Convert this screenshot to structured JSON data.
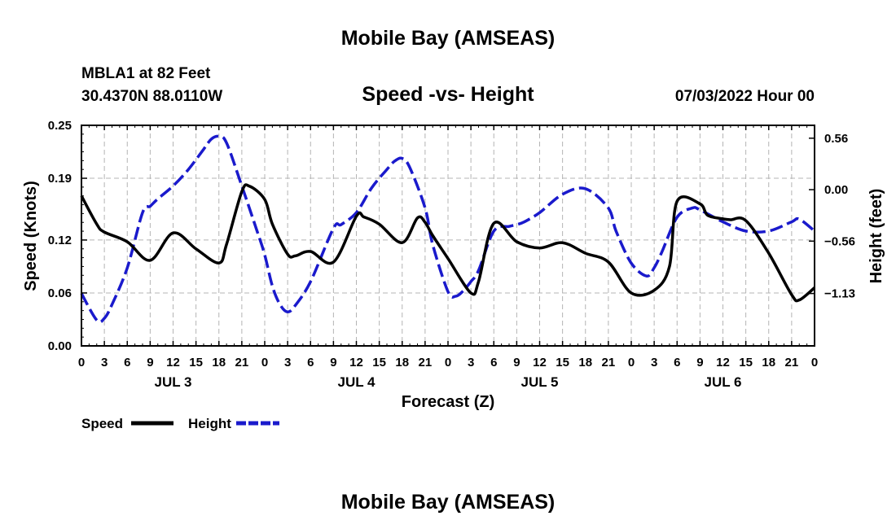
{
  "header": {
    "title": "Mobile Bay (AMSEAS)",
    "station": "MBLA1 at 82 Feet",
    "coords": "30.4370N  88.0110W",
    "subtitle": "Speed -vs- Height",
    "run_time": "07/03/2022 Hour 00"
  },
  "footer": {
    "title": "Mobile Bay (AMSEAS)"
  },
  "legend": {
    "speed_label": "Speed",
    "height_label": "Height"
  },
  "chart_data": {
    "type": "line",
    "title": "Speed -vs- Height",
    "xlabel": "Forecast (Z)",
    "ylabel": "Speed (Knots)",
    "y2label": "Height (feet)",
    "ylim": [
      0,
      0.25
    ],
    "y2lim": [
      -1.7,
      0.7
    ],
    "xlim": [
      0,
      96
    ],
    "x_ticks": [
      0,
      3,
      6,
      9,
      12,
      15,
      18,
      21,
      24,
      27,
      30,
      33,
      36,
      39,
      42,
      45,
      48,
      51,
      54,
      57,
      60,
      63,
      66,
      69,
      72,
      75,
      78,
      81,
      84,
      87,
      90,
      93,
      96
    ],
    "x_tick_labels": [
      "0",
      "3",
      "6",
      "9",
      "12",
      "15",
      "18",
      "21",
      "0",
      "3",
      "6",
      "9",
      "12",
      "15",
      "18",
      "21",
      "0",
      "3",
      "6",
      "9",
      "12",
      "15",
      "18",
      "21",
      "0",
      "3",
      "6",
      "9",
      "12",
      "15",
      "18",
      "21",
      "0"
    ],
    "day_labels": [
      {
        "label": "JUL 3",
        "x": 12
      },
      {
        "label": "JUL 4",
        "x": 36
      },
      {
        "label": "JUL 5",
        "x": 60
      },
      {
        "label": "JUL 6",
        "x": 84
      }
    ],
    "y_ticks": [
      0,
      0.06,
      0.12,
      0.19,
      0.25
    ],
    "y_tick_labels": [
      "0.00",
      "0.06",
      "0.12",
      "0.19",
      "0.25"
    ],
    "y2_ticks": [
      0.56,
      0,
      -0.56,
      -1.13
    ],
    "y2_tick_labels": [
      "0.56",
      "0.00",
      "−0.56",
      "−1.13"
    ],
    "grid": true,
    "legend_position": "bottom-left",
    "series": [
      {
        "name": "Speed",
        "axis": "left",
        "color": "#000000",
        "dash": "solid",
        "x": [
          0,
          2,
          3,
          6,
          9,
          12,
          15,
          18,
          19,
          21,
          22,
          24,
          25,
          27,
          28,
          30,
          33,
          36,
          37,
          39,
          42,
          44,
          45,
          46,
          48,
          51,
          52,
          54,
          57,
          60,
          63,
          66,
          69,
          72,
          75,
          77,
          78,
          81,
          82,
          84,
          85,
          87,
          90,
          93,
          94,
          96
        ],
        "y": [
          0.17,
          0.138,
          0.129,
          0.118,
          0.097,
          0.128,
          0.11,
          0.094,
          0.115,
          0.175,
          0.181,
          0.166,
          0.138,
          0.104,
          0.102,
          0.107,
          0.095,
          0.147,
          0.146,
          0.138,
          0.117,
          0.145,
          0.14,
          0.125,
          0.099,
          0.06,
          0.073,
          0.139,
          0.118,
          0.111,
          0.117,
          0.105,
          0.095,
          0.06,
          0.063,
          0.09,
          0.164,
          0.161,
          0.148,
          0.144,
          0.143,
          0.142,
          0.105,
          0.058,
          0.052,
          0.066
        ]
      },
      {
        "name": "Height",
        "axis": "right",
        "color": "#1a1acc",
        "dash": "dashed",
        "x": [
          0,
          2,
          3,
          4,
          6,
          8,
          9,
          10,
          12,
          14,
          16,
          17,
          18,
          19,
          21,
          23,
          24,
          25,
          26,
          27,
          28,
          30,
          33,
          34,
          36,
          38,
          40,
          41,
          42,
          43,
          45,
          46,
          48,
          49,
          50,
          51,
          52,
          54,
          56,
          57,
          58,
          60,
          63,
          66,
          69,
          70,
          72,
          74,
          75,
          76,
          78,
          80,
          81,
          84,
          87,
          90,
          93,
          94,
          96
        ],
        "y": [
          -1.13,
          -1.42,
          -1.4,
          -1.25,
          -0.85,
          -0.25,
          -0.18,
          -0.1,
          0.04,
          0.22,
          0.44,
          0.55,
          0.58,
          0.51,
          0.04,
          -0.45,
          -0.71,
          -1.05,
          -1.25,
          -1.33,
          -1.26,
          -1.0,
          -0.42,
          -0.38,
          -0.25,
          0.02,
          0.22,
          0.31,
          0.34,
          0.24,
          -0.2,
          -0.6,
          -1.11,
          -1.16,
          -1.1,
          -1.0,
          -0.88,
          -0.45,
          -0.4,
          -0.38,
          -0.35,
          -0.25,
          -0.05,
          0.01,
          -0.2,
          -0.45,
          -0.8,
          -0.94,
          -0.85,
          -0.68,
          -0.3,
          -0.2,
          -0.22,
          -0.35,
          -0.45,
          -0.45,
          -0.35,
          -0.32,
          -0.45
        ]
      }
    ]
  }
}
